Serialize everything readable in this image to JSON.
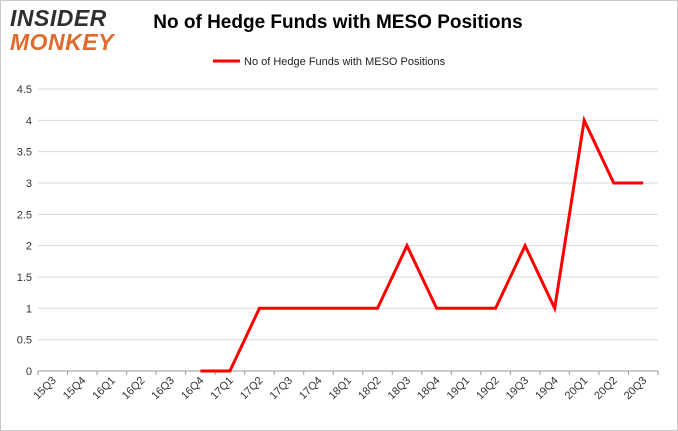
{
  "logo": {
    "line1": "INSIDER",
    "line2": "MONKEY"
  },
  "chart_data": {
    "type": "line",
    "title": "No of Hedge Funds with MESO Positions",
    "xlabel": "",
    "ylabel": "",
    "categories": [
      "15Q3",
      "15Q4",
      "16Q1",
      "16Q2",
      "16Q3",
      "16Q4",
      "17Q1",
      "17Q2",
      "17Q3",
      "17Q4",
      "18Q1",
      "18Q2",
      "18Q3",
      "18Q4",
      "19Q1",
      "19Q2",
      "19Q3",
      "19Q4",
      "20Q1",
      "20Q2",
      "20Q3"
    ],
    "series": [
      {
        "name": "No of Hedge Funds with MESO Positions",
        "color": "#ff0000",
        "values": [
          null,
          null,
          null,
          null,
          null,
          0,
          0,
          1,
          1,
          1,
          1,
          1,
          2,
          1,
          1,
          1,
          2,
          1,
          4,
          3,
          3
        ]
      }
    ],
    "ylim": [
      0,
      4.5
    ],
    "yticks": [
      "0",
      "0.5",
      "1",
      "1.5",
      "2",
      "2.5",
      "3",
      "3.5",
      "4",
      "4.5"
    ],
    "grid": true,
    "legend_position": "top-center"
  }
}
